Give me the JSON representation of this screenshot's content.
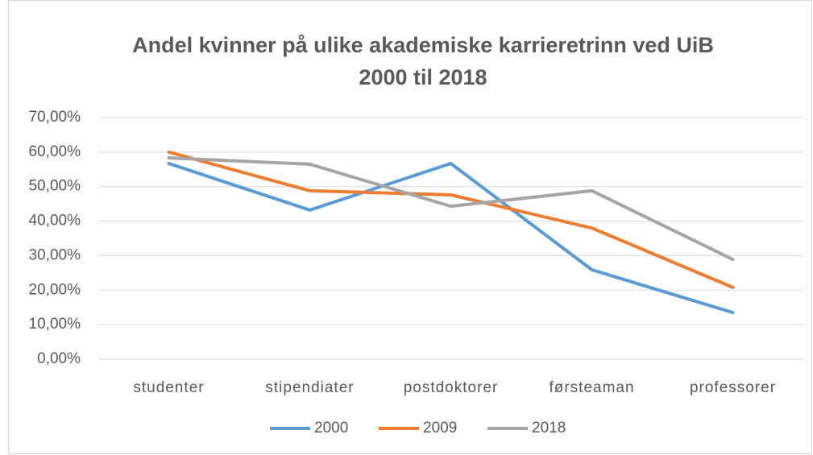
{
  "chart_data": {
    "type": "line",
    "title": [
      "Andel kvinner på ulike akademiske karrieretrinn ved UiB",
      "2000 til 2018"
    ],
    "categories": [
      "studenter",
      "stipendiater",
      "postdoktorer",
      "førsteaman",
      "professorer"
    ],
    "series": [
      {
        "name": "2000",
        "color": "#5b9bd5",
        "values": [
          56.7,
          43.2,
          56.7,
          25.9,
          13.5
        ]
      },
      {
        "name": "2009",
        "color": "#ed7d31",
        "values": [
          60.0,
          48.8,
          47.6,
          38.0,
          20.8
        ]
      },
      {
        "name": "2018",
        "color": "#a5a5a5",
        "values": [
          58.3,
          56.5,
          44.3,
          48.8,
          28.9
        ]
      }
    ],
    "ylim": [
      0,
      70
    ],
    "yticks": [
      {
        "value": 0,
        "label": "0,00%"
      },
      {
        "value": 10,
        "label": "10,00%"
      },
      {
        "value": 20,
        "label": "20,00%"
      },
      {
        "value": 30,
        "label": "30,00%"
      },
      {
        "value": 40,
        "label": "40,00%"
      },
      {
        "value": 50,
        "label": "50,00%"
      },
      {
        "value": 60,
        "label": "60,00%"
      },
      {
        "value": 70,
        "label": "70,00%"
      }
    ],
    "grid": true,
    "legend": "bottom"
  }
}
